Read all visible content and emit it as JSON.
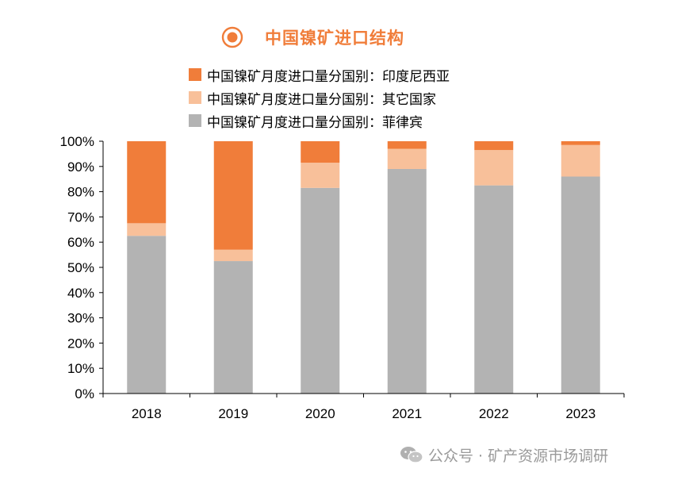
{
  "chart_data": {
    "type": "bar",
    "stacked": true,
    "title": "中国镍矿进口结构",
    "categories": [
      "2018",
      "2019",
      "2020",
      "2021",
      "2022",
      "2023"
    ],
    "series": [
      {
        "name": "中国镍矿月度进口量分国别：菲律宾",
        "color": "#b3b3b3",
        "values": [
          62.5,
          52.5,
          81.5,
          89,
          82.5,
          86
        ]
      },
      {
        "name": "中国镍矿月度进口量分国别：其它国家",
        "color": "#f8c09a",
        "values": [
          5,
          4.5,
          10,
          8,
          14,
          12.5
        ]
      },
      {
        "name": "中国镍矿月度进口量分国别：印度尼西亚",
        "color": "#f07d3a",
        "values": [
          32.5,
          43,
          8.5,
          3,
          3.5,
          1.5
        ]
      }
    ],
    "legend_order": [
      2,
      1,
      0
    ],
    "yticks": [
      "0%",
      "10%",
      "20%",
      "30%",
      "40%",
      "50%",
      "60%",
      "70%",
      "80%",
      "90%",
      "100%"
    ],
    "ylim": [
      0,
      100
    ],
    "grid": false,
    "legend_position": "top"
  },
  "title_icon": "bullseye-icon",
  "watermark": {
    "icon": "wechat-icon",
    "text": "公众号 · 矿产资源市场调研"
  }
}
